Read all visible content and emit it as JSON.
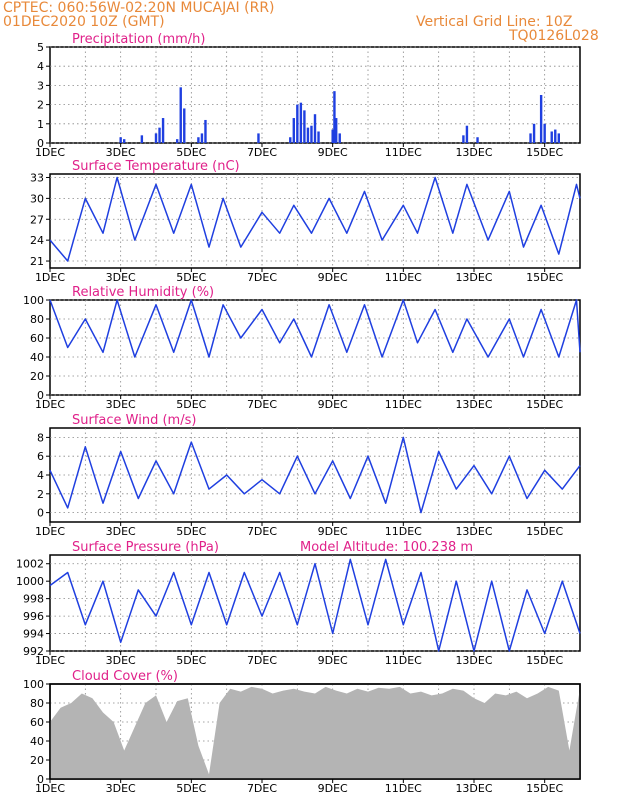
{
  "header": {
    "line1": "CPTEC:   060:56W-02:20N   MUCAJAI (RR)",
    "line2": "01DEC2020  10Z (GMT)",
    "grid_note": "Vertical Grid Line: 10Z",
    "code": "TQ0126L028"
  },
  "colors": {
    "header": "#e8893a",
    "title": "#e0218a",
    "line": "#1f3fe0",
    "cloud": "#b4b4b4"
  },
  "x_axis": {
    "ticks": [
      "1DEC",
      "3DEC",
      "5DEC",
      "7DEC",
      "9DEC",
      "11DEC",
      "13DEC",
      "15DEC"
    ],
    "tick_days": [
      0,
      2,
      4,
      6,
      8,
      10,
      12,
      14
    ],
    "range_days": [
      0,
      15
    ]
  },
  "chart_data": [
    {
      "type": "bar",
      "title": "Precipitation (mm/h)",
      "ylim": [
        0,
        5
      ],
      "yticks": [
        0,
        1,
        2,
        3,
        4,
        5
      ],
      "bars": [
        [
          2.0,
          0.3
        ],
        [
          2.1,
          0.2
        ],
        [
          2.6,
          0.4
        ],
        [
          3.0,
          0.5
        ],
        [
          3.1,
          0.8
        ],
        [
          3.2,
          1.3
        ],
        [
          3.6,
          0.2
        ],
        [
          3.7,
          2.9
        ],
        [
          3.8,
          1.8
        ],
        [
          4.2,
          0.3
        ],
        [
          4.3,
          0.5
        ],
        [
          4.4,
          1.2
        ],
        [
          5.9,
          0.5
        ],
        [
          6.8,
          0.3
        ],
        [
          6.9,
          1.3
        ],
        [
          7.0,
          2.0
        ],
        [
          7.1,
          2.1
        ],
        [
          7.2,
          1.7
        ],
        [
          7.3,
          0.8
        ],
        [
          7.4,
          0.9
        ],
        [
          7.5,
          1.5
        ],
        [
          7.6,
          0.6
        ],
        [
          8.0,
          0.7
        ],
        [
          8.05,
          2.7
        ],
        [
          8.1,
          1.3
        ],
        [
          8.2,
          0.5
        ],
        [
          11.7,
          0.4
        ],
        [
          11.8,
          0.9
        ],
        [
          12.1,
          0.3
        ],
        [
          13.6,
          0.5
        ],
        [
          13.7,
          1.0
        ],
        [
          13.9,
          2.5
        ],
        [
          14.0,
          1.0
        ],
        [
          14.2,
          0.6
        ],
        [
          14.3,
          0.7
        ],
        [
          14.4,
          0.5
        ]
      ]
    },
    {
      "type": "line",
      "title": "Surface Temperature (nC)",
      "ylim": [
        20,
        33.5
      ],
      "yticks": [
        21,
        24,
        27,
        30,
        33
      ],
      "x": [
        0,
        0.5,
        1.0,
        1.5,
        1.9,
        2.4,
        3.0,
        3.5,
        4.0,
        4.5,
        4.9,
        5.4,
        6.0,
        6.5,
        6.9,
        7.4,
        7.9,
        8.4,
        8.9,
        9.4,
        10.0,
        10.4,
        10.9,
        11.4,
        11.8,
        12.4,
        13.0,
        13.4,
        13.9,
        14.4,
        14.9,
        15.0
      ],
      "values": [
        24,
        21,
        30,
        25,
        33,
        24,
        32,
        25,
        32,
        23,
        30,
        23,
        28,
        25,
        29,
        25,
        30,
        25,
        31,
        24,
        29,
        25,
        33,
        25,
        32,
        24,
        31,
        23,
        29,
        22,
        32,
        30
      ]
    },
    {
      "type": "line",
      "title": "Relative Humidity (%)",
      "ylim": [
        0,
        100
      ],
      "yticks": [
        0,
        20,
        40,
        60,
        80,
        100
      ],
      "x": [
        0,
        0.5,
        1.0,
        1.5,
        1.9,
        2.4,
        3.0,
        3.5,
        4.0,
        4.5,
        4.9,
        5.4,
        6.0,
        6.5,
        6.9,
        7.4,
        7.9,
        8.4,
        8.9,
        9.4,
        10.0,
        10.4,
        10.9,
        11.4,
        11.8,
        12.4,
        13.0,
        13.4,
        13.9,
        14.4,
        14.9,
        15.0
      ],
      "values": [
        100,
        50,
        80,
        45,
        100,
        40,
        95,
        45,
        100,
        40,
        95,
        60,
        90,
        55,
        80,
        40,
        95,
        45,
        95,
        40,
        100,
        55,
        90,
        45,
        80,
        40,
        80,
        40,
        90,
        40,
        100,
        45
      ]
    },
    {
      "type": "line",
      "title": "Surface Wind (m/s)",
      "ylim": [
        -1,
        9
      ],
      "yticks": [
        0,
        2,
        4,
        6,
        8
      ],
      "x": [
        0,
        0.5,
        1.0,
        1.5,
        2.0,
        2.5,
        3.0,
        3.5,
        4.0,
        4.5,
        5.0,
        5.5,
        6.0,
        6.5,
        7.0,
        7.5,
        8.0,
        8.5,
        9.0,
        9.5,
        10.0,
        10.5,
        11.0,
        11.5,
        12.0,
        12.5,
        13.0,
        13.5,
        14.0,
        14.5,
        15.0
      ],
      "values": [
        4.5,
        0.5,
        7.0,
        1.0,
        6.5,
        1.5,
        5.5,
        2.0,
        7.5,
        2.5,
        4.0,
        2.0,
        3.5,
        2.0,
        6.0,
        2.0,
        5.5,
        1.5,
        6.0,
        1.0,
        8.0,
        0.0,
        6.5,
        2.5,
        5.0,
        2.0,
        6.0,
        1.5,
        4.5,
        2.5,
        5.0
      ]
    },
    {
      "type": "line",
      "title": "Surface Pressure (hPa)",
      "annotation": "Model Altitude: 100.238 m",
      "ylim": [
        992,
        1003
      ],
      "yticks": [
        992,
        994,
        996,
        998,
        1000,
        1002
      ],
      "x": [
        0,
        0.5,
        1.0,
        1.5,
        2.0,
        2.5,
        3.0,
        3.5,
        4.0,
        4.5,
        5.0,
        5.5,
        6.0,
        6.5,
        7.0,
        7.5,
        8.0,
        8.5,
        9.0,
        9.5,
        10.0,
        10.5,
        11.0,
        11.5,
        12.0,
        12.5,
        13.0,
        13.5,
        14.0,
        14.5,
        15.0
      ],
      "values": [
        999.5,
        1001,
        995,
        1000,
        993,
        999,
        996,
        1001,
        995,
        1001,
        995,
        1001,
        996,
        1001,
        995,
        1002,
        994,
        1002.5,
        995,
        1002.5,
        995,
        1001,
        992,
        1000,
        992,
        1000,
        992,
        999,
        994,
        1000,
        994
      ]
    },
    {
      "type": "area",
      "title": "Cloud Cover (%)",
      "ylim": [
        0,
        100
      ],
      "yticks": [
        0,
        20,
        40,
        60,
        80,
        100
      ],
      "x": [
        0,
        0.3,
        0.6,
        0.9,
        1.2,
        1.5,
        1.8,
        2.1,
        2.4,
        2.7,
        3.0,
        3.3,
        3.6,
        3.9,
        4.2,
        4.5,
        4.8,
        5.1,
        5.4,
        5.7,
        6.0,
        6.3,
        6.6,
        6.9,
        7.2,
        7.5,
        7.8,
        8.1,
        8.4,
        8.7,
        9.0,
        9.3,
        9.6,
        9.9,
        10.2,
        10.5,
        10.8,
        11.1,
        11.4,
        11.7,
        12.0,
        12.3,
        12.6,
        12.9,
        13.2,
        13.5,
        13.8,
        14.1,
        14.4,
        14.7,
        15.0
      ],
      "values": [
        60,
        75,
        80,
        90,
        85,
        70,
        60,
        30,
        55,
        80,
        88,
        60,
        82,
        85,
        35,
        5,
        80,
        95,
        92,
        97,
        95,
        90,
        93,
        95,
        92,
        90,
        97,
        93,
        90,
        95,
        92,
        96,
        95,
        97,
        90,
        92,
        88,
        90,
        95,
        93,
        85,
        80,
        90,
        88,
        92,
        85,
        90,
        97,
        93,
        30,
        95
      ]
    }
  ]
}
